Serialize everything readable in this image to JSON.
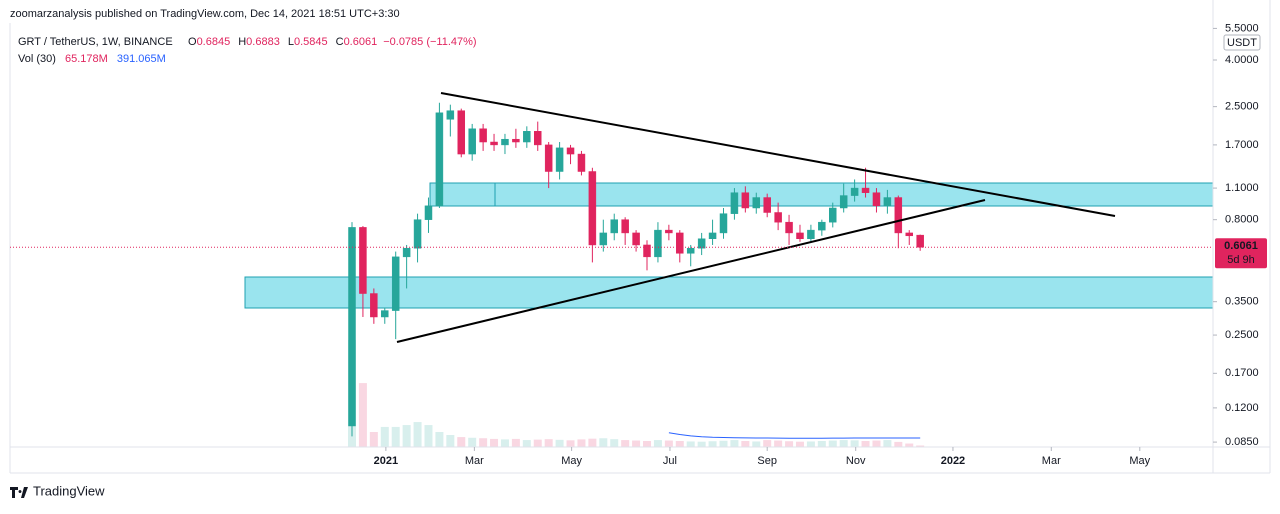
{
  "chart_data": {
    "type": "candlestick",
    "publisher": "zoomarzanalysis published on TradingView.com, Dec 14, 2021 18:51 UTC+3:30",
    "symbol": "GRT / TetherUS, 1W, BINANCE",
    "legend_keys": [
      "O",
      "H",
      "L",
      "C"
    ],
    "change": "−0.0785 (−11.47%)",
    "volume_title": "Vol (30)",
    "volume_label": "65.178M",
    "volume_ma_label": "391.065M",
    "currency": "USDT",
    "last_price": 0.6061,
    "countdown": "5d 9h",
    "brand": "TradingView",
    "log_scale": true,
    "up_color": "#26a69a",
    "down_color": "#e0245e",
    "ma_color": "#2962ff",
    "open": [
      0.1,
      0.74,
      0.38,
      0.3,
      0.32,
      0.55,
      0.6,
      0.8,
      0.92,
      2.2,
      2.4,
      1.55,
      2.0,
      1.75,
      1.7,
      1.8,
      1.75,
      1.95,
      1.7,
      1.3,
      1.65,
      1.55,
      1.3,
      0.62,
      0.7,
      0.8,
      0.7,
      0.62,
      0.55,
      0.72,
      0.7,
      0.57,
      0.6,
      0.66,
      0.7,
      0.85,
      1.05,
      0.9,
      1.0,
      0.86,
      0.78,
      0.7,
      0.66,
      0.72,
      0.78,
      0.9,
      1.02,
      1.1,
      1.05,
      0.92,
      1.0,
      0.7,
      0.6845
    ],
    "high": [
      0.78,
      0.75,
      0.4,
      0.33,
      0.58,
      0.62,
      0.85,
      1.0,
      2.6,
      2.55,
      2.45,
      2.1,
      2.1,
      1.9,
      1.9,
      2.0,
      2.05,
      2.15,
      1.75,
      1.75,
      1.7,
      1.6,
      1.35,
      0.8,
      0.85,
      0.82,
      0.72,
      0.65,
      0.78,
      0.76,
      0.72,
      0.62,
      0.7,
      0.8,
      0.9,
      1.1,
      1.12,
      1.05,
      1.04,
      0.95,
      0.84,
      0.76,
      0.76,
      0.8,
      0.95,
      1.15,
      1.2,
      1.35,
      1.1,
      1.08,
      1.02,
      0.72,
      0.6883
    ],
    "low": [
      0.09,
      0.3,
      0.28,
      0.28,
      0.24,
      0.4,
      0.52,
      0.7,
      0.9,
      1.85,
      1.5,
      1.45,
      1.6,
      1.6,
      1.55,
      1.65,
      1.65,
      1.6,
      1.1,
      1.2,
      1.4,
      1.25,
      0.52,
      0.58,
      0.65,
      0.62,
      0.58,
      0.48,
      0.52,
      0.65,
      0.52,
      0.5,
      0.56,
      0.62,
      0.66,
      0.8,
      0.86,
      0.85,
      0.82,
      0.72,
      0.62,
      0.64,
      0.64,
      0.68,
      0.74,
      0.86,
      0.96,
      1.0,
      0.86,
      0.85,
      0.6,
      0.62,
      0.5845
    ],
    "close": [
      0.74,
      0.38,
      0.3,
      0.32,
      0.55,
      0.6,
      0.8,
      0.92,
      2.35,
      2.4,
      1.55,
      2.0,
      1.75,
      1.7,
      1.8,
      1.75,
      1.95,
      1.7,
      1.3,
      1.65,
      1.55,
      1.3,
      0.62,
      0.7,
      0.8,
      0.7,
      0.62,
      0.55,
      0.72,
      0.7,
      0.57,
      0.6,
      0.66,
      0.7,
      0.85,
      1.05,
      0.9,
      1.0,
      0.86,
      0.78,
      0.7,
      0.66,
      0.72,
      0.78,
      0.9,
      1.02,
      1.1,
      1.05,
      0.92,
      1.0,
      0.7,
      0.68,
      0.6061
    ],
    "volume": [
      4640,
      2770,
      650,
      870,
      870,
      950,
      1080,
      950,
      650,
      520,
      430,
      400,
      380,
      350,
      330,
      350,
      300,
      320,
      340,
      310,
      290,
      330,
      360,
      380,
      340,
      300,
      280,
      260,
      300,
      280,
      260,
      240,
      230,
      250,
      270,
      300,
      260,
      240,
      300,
      280,
      250,
      230,
      240,
      260,
      280,
      300,
      290,
      260,
      280,
      300,
      220,
      150,
      65.178
    ],
    "volume_ma": [
      null,
      null,
      null,
      null,
      null,
      null,
      null,
      null,
      null,
      null,
      null,
      null,
      null,
      null,
      null,
      null,
      null,
      null,
      null,
      null,
      null,
      null,
      null,
      null,
      null,
      null,
      null,
      null,
      null,
      620,
      540,
      480,
      440,
      420,
      410,
      400,
      395,
      390,
      388,
      385,
      383,
      382,
      382,
      383,
      385,
      387,
      388,
      389,
      390,
      390,
      391,
      391,
      391.065
    ],
    "volume_lim": [
      0,
      6500
    ],
    "xlim": [
      -31.3,
      78.8
    ],
    "xticks": [
      {
        "value": 3.1,
        "label": "2021"
      },
      {
        "value": 11.2,
        "label": "Mar"
      },
      {
        "value": 20.1,
        "label": "May"
      },
      {
        "value": 29.1,
        "label": "Jul"
      },
      {
        "value": 38.0,
        "label": "Sep"
      },
      {
        "value": 46.1,
        "label": "Nov"
      },
      {
        "value": 55.0,
        "label": "2022"
      },
      {
        "value": 64.0,
        "label": "Mar"
      },
      {
        "value": 72.1,
        "label": "May"
      }
    ],
    "ylim": [
      0.0809,
      5.75
    ],
    "yticks": [
      {
        "value": 5.5,
        "label": "5.5000"
      },
      {
        "value": 4,
        "label": "4.0000"
      },
      {
        "value": 2.5,
        "label": "2.5000"
      },
      {
        "value": 1.7,
        "label": "1.7000"
      },
      {
        "value": 1.1,
        "label": "1.1000"
      },
      {
        "value": 0.8,
        "label": "0.8000"
      },
      {
        "value": 0.35,
        "label": "0.3500"
      },
      {
        "value": 0.25,
        "label": "0.2500"
      },
      {
        "value": 0.17,
        "label": "0.1700"
      },
      {
        "value": 0.12,
        "label": "0.1200"
      },
      {
        "value": 0.085,
        "label": "0.0850"
      }
    ]
  }
}
